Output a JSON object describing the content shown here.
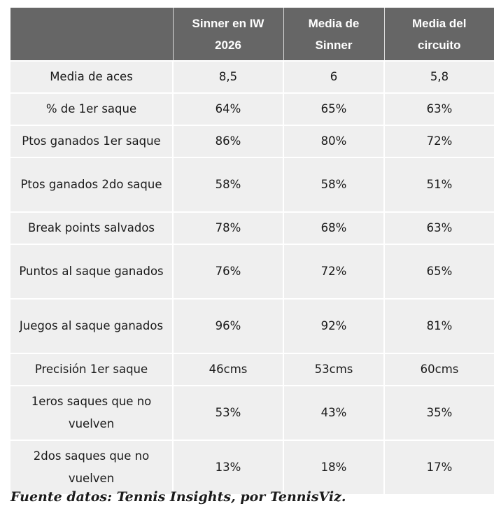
{
  "table": {
    "headers": [
      "",
      "Sinner en IW 2026",
      "Media de Sinner",
      "Media del circuito"
    ],
    "rows": [
      {
        "label": "Media de aces",
        "values": [
          "8,5",
          "6",
          "5,8"
        ]
      },
      {
        "label": "% de 1er saque",
        "values": [
          "64%",
          "65%",
          "63%"
        ]
      },
      {
        "label": "Ptos ganados 1er saque",
        "values": [
          "86%",
          "80%",
          "72%"
        ]
      },
      {
        "label": "Ptos ganados 2do saque",
        "values": [
          "58%",
          "58%",
          "51%"
        ]
      },
      {
        "label": "Break points salvados",
        "values": [
          "78%",
          "68%",
          "63%"
        ]
      },
      {
        "label": "Puntos al saque ganados",
        "values": [
          "76%",
          "72%",
          "65%"
        ]
      },
      {
        "label": "Juegos al saque ganados",
        "values": [
          "96%",
          "92%",
          "81%"
        ]
      },
      {
        "label": "Precisión 1er saque",
        "values": [
          "46cms",
          "53cms",
          "60cms"
        ]
      },
      {
        "label": "1eros saques que no vuelven",
        "values": [
          "53%",
          "43%",
          "35%"
        ]
      },
      {
        "label": "2dos saques que no vuelven",
        "values": [
          "13%",
          "18%",
          "17%"
        ]
      }
    ]
  },
  "caption": "Fuente datos: Tennis Insights, por TennisViz.",
  "colors": {
    "header_bg": "#666666",
    "header_text": "#ffffff",
    "cell_bg": "#efefef",
    "cell_text": "#1a1a1a"
  }
}
